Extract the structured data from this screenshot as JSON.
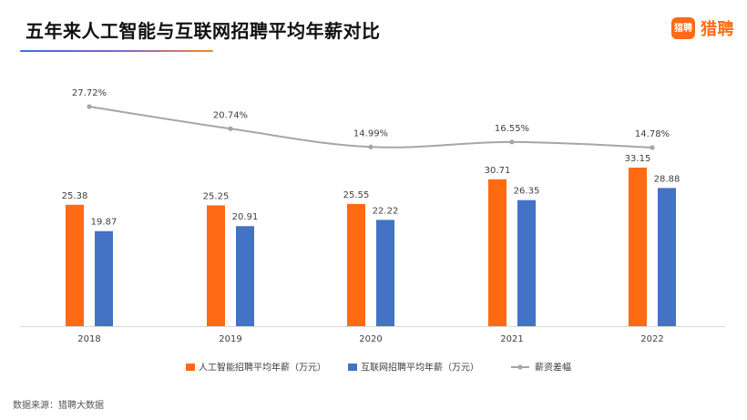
{
  "header": {
    "title": "五年来人工智能与互联网招聘平均年薪对比"
  },
  "logo": {
    "badge_text": "猎聘",
    "brand_text": "猎聘"
  },
  "footer": {
    "source": "数据来源：猎聘大数据"
  },
  "colors": {
    "ai_series": "#ff6a13",
    "internet_series": "#4472c4",
    "gap_line": "#a6a6a6",
    "brand": "#ff6a13"
  },
  "chart_data": {
    "type": "bar",
    "categories": [
      "2018",
      "2019",
      "2020",
      "2021",
      "2022"
    ],
    "series": [
      {
        "name": "人工智能招聘平均年薪（万元）",
        "type": "bar",
        "values": [
          25.38,
          25.25,
          25.55,
          30.71,
          33.15
        ],
        "labels": [
          "25.38",
          "25.25",
          "25.55",
          "30.71",
          "33.15"
        ]
      },
      {
        "name": "互联网招聘平均年薪（万元）",
        "type": "bar",
        "values": [
          19.87,
          20.91,
          22.22,
          26.35,
          28.88
        ],
        "labels": [
          "19.87",
          "20.91",
          "22.22",
          "26.35",
          "28.88"
        ]
      },
      {
        "name": "薪资差幅",
        "type": "line",
        "values": [
          27.72,
          20.74,
          14.99,
          16.55,
          14.78
        ],
        "labels": [
          "27.72%",
          "20.74%",
          "14.99%",
          "16.55%",
          "14.78%"
        ]
      }
    ],
    "bar_ylim": [
      0,
      40
    ],
    "line_ylim": [
      0,
      35
    ],
    "grid": false,
    "legend_position": "bottom"
  }
}
